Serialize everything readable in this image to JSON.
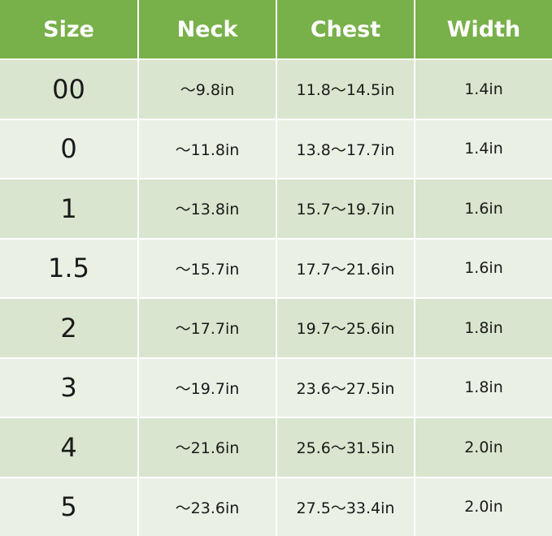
{
  "table": {
    "header": [
      "Size",
      "Neck",
      "Chest",
      "Width"
    ],
    "rows": [
      [
        "00",
        "～9.8in",
        "11.8～14.5in",
        "1.4in"
      ],
      [
        "0",
        "～11.8in",
        "13.8～17.7in",
        "1.4in"
      ],
      [
        "1",
        "～13.8in",
        "15.7～19.7in",
        "1.6in"
      ],
      [
        "1.5",
        "～15.7in",
        "17.7～21.6in",
        "1.6in"
      ],
      [
        "2",
        "～17.7in",
        "19.7～25.6in",
        "1.8in"
      ],
      [
        "3",
        "～19.7in",
        "23.6～27.5in",
        "1.8in"
      ],
      [
        "4",
        "～21.6in",
        "25.6～31.5in",
        "2.0in"
      ],
      [
        "5",
        "～23.6in",
        "27.5～33.4in",
        "2.0in"
      ]
    ]
  }
}
